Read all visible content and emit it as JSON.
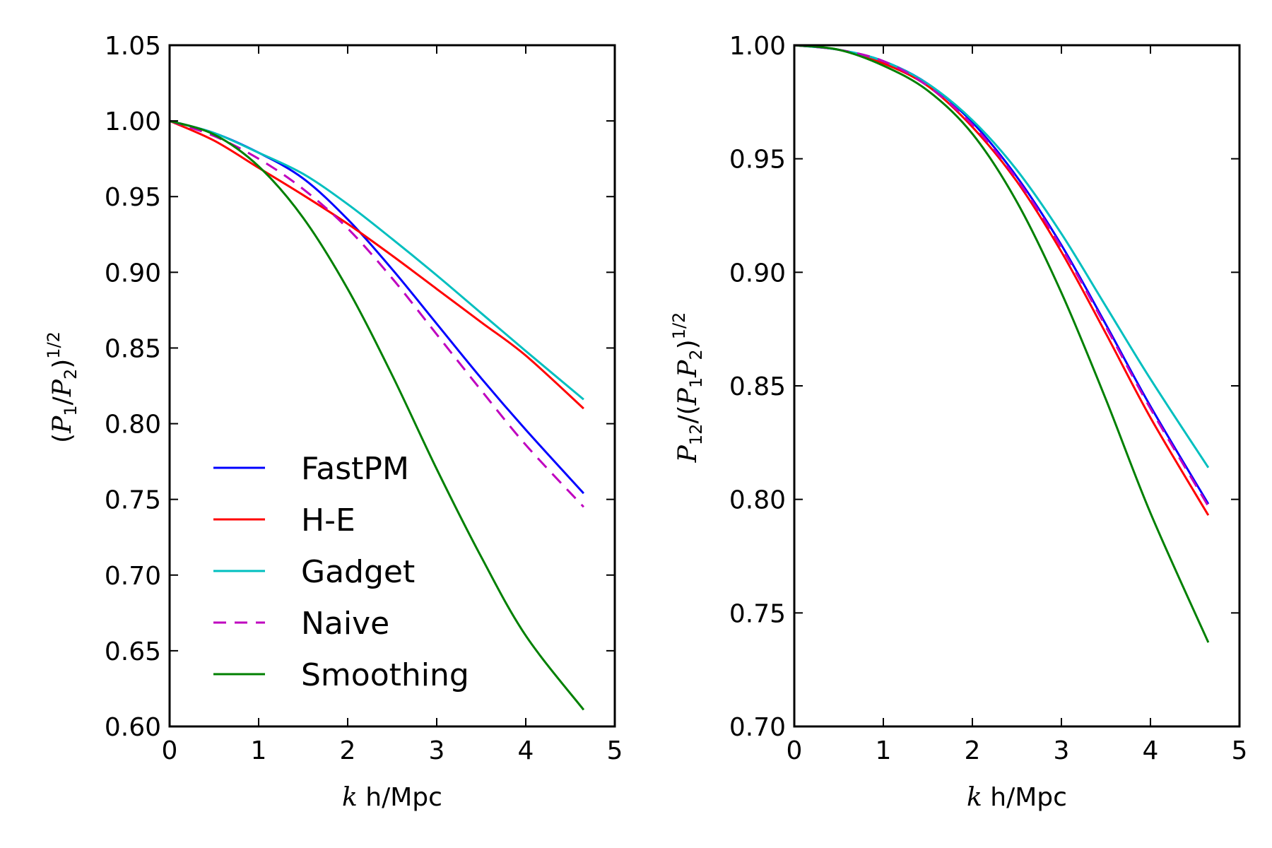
{
  "colors": {
    "FastPM": "#0000ff",
    "H-E": "#ff0000",
    "Gadget": "#00bfbf",
    "Naive": "#bf00bf",
    "Smoothing": "#008000"
  },
  "chart_data": [
    {
      "type": "line",
      "ylabel": "(P1/P2)^1/2",
      "xlabel": "k h/Mpc",
      "xlim": [
        0,
        5
      ],
      "ylim": [
        0.6,
        1.05
      ],
      "xticks": [
        "0",
        "1",
        "2",
        "3",
        "4",
        "5"
      ],
      "yticks": [
        "0.60",
        "0.65",
        "0.70",
        "0.75",
        "0.80",
        "0.85",
        "0.90",
        "0.95",
        "1.00",
        "1.05"
      ],
      "legend_position": "bottom-left",
      "x": [
        0,
        0.5,
        1.0,
        1.5,
        2.0,
        2.5,
        3.0,
        3.5,
        4.0,
        4.65
      ],
      "series": [
        {
          "name": "FastPM",
          "dashed": false,
          "values": [
            1.0,
            0.992,
            0.979,
            0.962,
            0.935,
            0.902,
            0.866,
            0.83,
            0.796,
            0.754
          ]
        },
        {
          "name": "H-E",
          "dashed": false,
          "values": [
            1.0,
            0.987,
            0.969,
            0.951,
            0.932,
            0.911,
            0.889,
            0.867,
            0.845,
            0.81
          ]
        },
        {
          "name": "Gadget",
          "dashed": false,
          "values": [
            1.0,
            0.992,
            0.979,
            0.965,
            0.945,
            0.922,
            0.898,
            0.873,
            0.848,
            0.816
          ]
        },
        {
          "name": "Naive",
          "dashed": true,
          "values": [
            1.0,
            0.99,
            0.975,
            0.955,
            0.929,
            0.896,
            0.859,
            0.822,
            0.786,
            0.745
          ]
        },
        {
          "name": "Smoothing",
          "dashed": false,
          "values": [
            1.0,
            0.991,
            0.97,
            0.936,
            0.889,
            0.832,
            0.77,
            0.712,
            0.66,
            0.611
          ]
        }
      ],
      "legend": [
        "FastPM",
        "H-E",
        "Gadget",
        "Naive",
        "Smoothing"
      ]
    },
    {
      "type": "line",
      "ylabel": "P12/(P1P2)^1/2",
      "xlabel": "k h/Mpc",
      "xlim": [
        0,
        5
      ],
      "ylim": [
        0.7,
        1.0
      ],
      "xticks": [
        "0",
        "1",
        "2",
        "3",
        "4",
        "5"
      ],
      "yticks": [
        "0.70",
        "0.75",
        "0.80",
        "0.85",
        "0.90",
        "0.95",
        "1.00"
      ],
      "x": [
        0,
        0.5,
        1.0,
        1.5,
        2.0,
        2.5,
        3.0,
        3.5,
        4.0,
        4.65
      ],
      "series": [
        {
          "name": "FastPM",
          "dashed": false,
          "values": [
            1.0,
            0.998,
            0.993,
            0.983,
            0.966,
            0.942,
            0.912,
            0.877,
            0.841,
            0.798
          ]
        },
        {
          "name": "H-E",
          "dashed": false,
          "values": [
            1.0,
            0.998,
            0.992,
            0.982,
            0.964,
            0.94,
            0.909,
            0.873,
            0.836,
            0.793
          ]
        },
        {
          "name": "Gadget",
          "dashed": false,
          "values": [
            1.0,
            0.998,
            0.993,
            0.983,
            0.967,
            0.945,
            0.917,
            0.885,
            0.853,
            0.814
          ]
        },
        {
          "name": "Naive",
          "dashed": true,
          "values": [
            1.0,
            0.998,
            0.993,
            0.982,
            0.965,
            0.941,
            0.911,
            0.876,
            0.84,
            0.797
          ]
        },
        {
          "name": "Smoothing",
          "dashed": false,
          "values": [
            1.0,
            0.998,
            0.991,
            0.98,
            0.961,
            0.931,
            0.891,
            0.844,
            0.794,
            0.737
          ]
        }
      ]
    }
  ]
}
